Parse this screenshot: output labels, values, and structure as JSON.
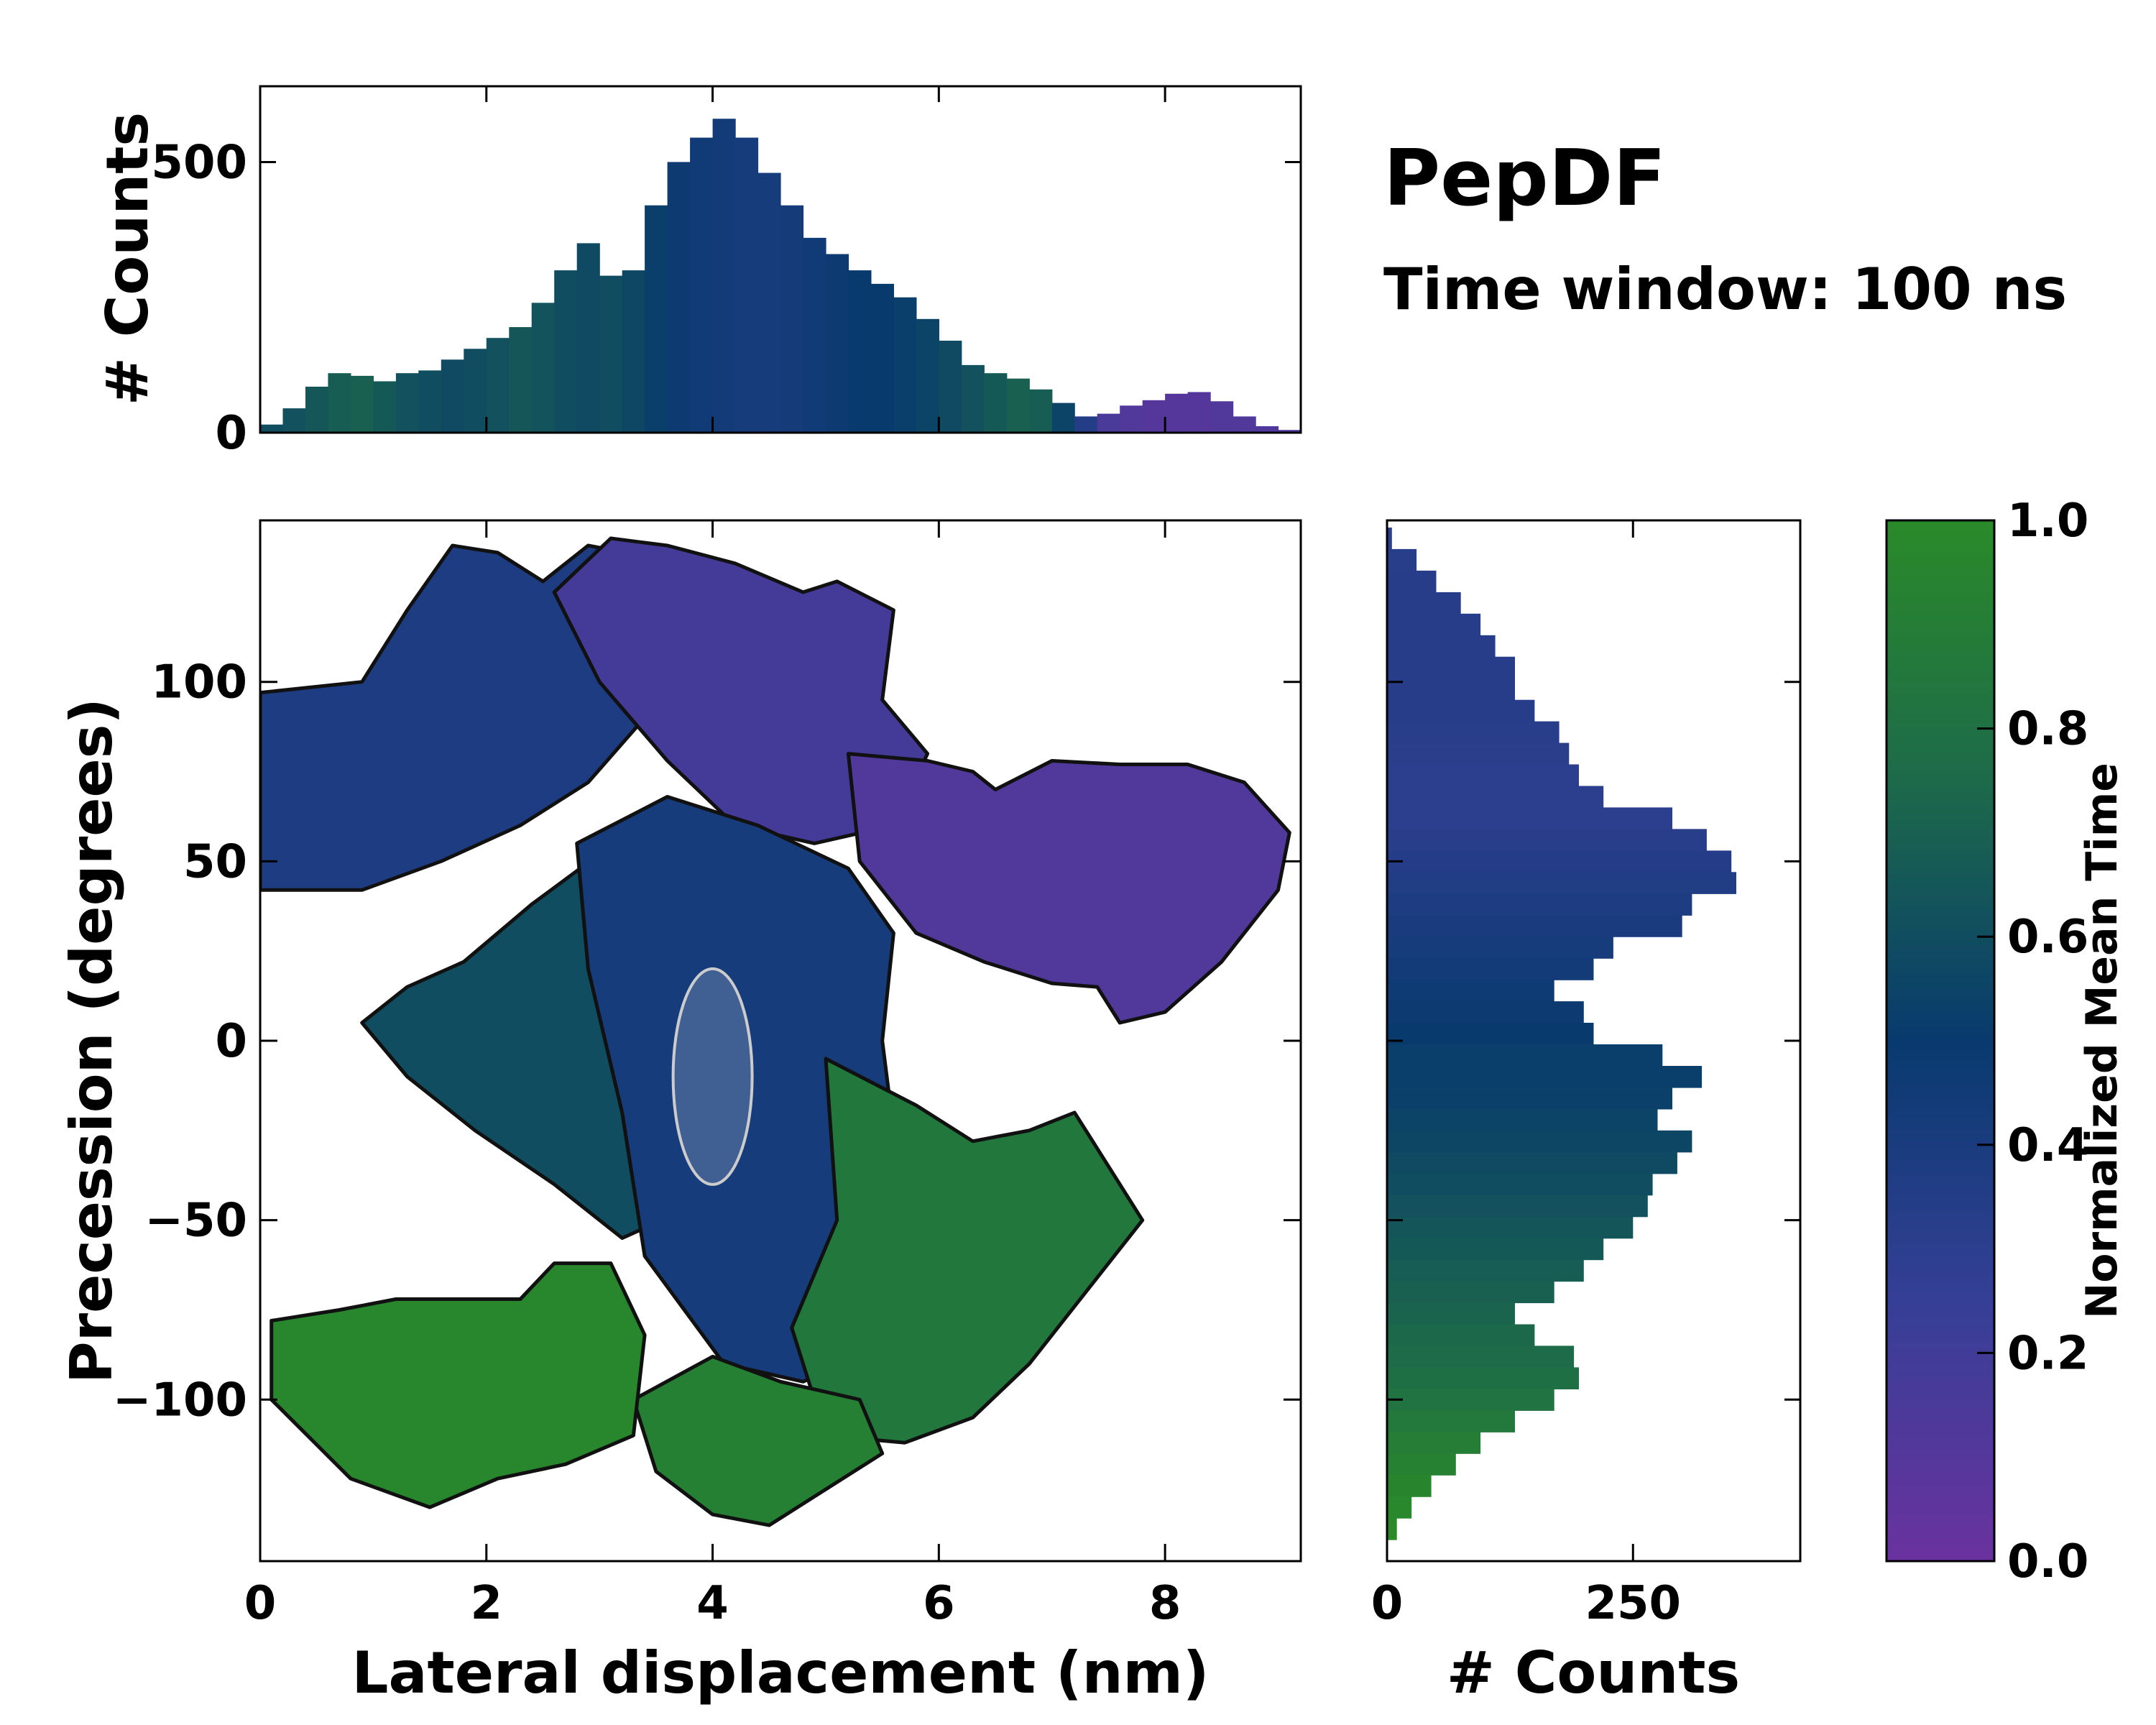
{
  "title": "PepDF",
  "subtitle": "Time window: 100 ns",
  "chart_data": [
    {
      "id": "top-histogram",
      "type": "bar",
      "ylabel": "# Counts",
      "xlim": [
        0,
        9.2
      ],
      "ylim": [
        0,
        640
      ],
      "yticks": [
        0,
        500
      ],
      "ytick_labels": [
        "0",
        "500"
      ],
      "bins": [
        {
          "x": 0.0,
          "count": 15,
          "t": 0.6
        },
        {
          "x": 0.2,
          "count": 45,
          "t": 0.62
        },
        {
          "x": 0.4,
          "count": 85,
          "t": 0.65
        },
        {
          "x": 0.6,
          "count": 110,
          "t": 0.68
        },
        {
          "x": 0.8,
          "count": 105,
          "t": 0.7
        },
        {
          "x": 1.0,
          "count": 95,
          "t": 0.66
        },
        {
          "x": 1.2,
          "count": 110,
          "t": 0.62
        },
        {
          "x": 1.4,
          "count": 115,
          "t": 0.6
        },
        {
          "x": 1.6,
          "count": 135,
          "t": 0.58
        },
        {
          "x": 1.8,
          "count": 155,
          "t": 0.6
        },
        {
          "x": 2.0,
          "count": 175,
          "t": 0.62
        },
        {
          "x": 2.2,
          "count": 195,
          "t": 0.65
        },
        {
          "x": 2.4,
          "count": 240,
          "t": 0.63
        },
        {
          "x": 2.6,
          "count": 300,
          "t": 0.6
        },
        {
          "x": 2.8,
          "count": 350,
          "t": 0.58
        },
        {
          "x": 3.0,
          "count": 290,
          "t": 0.6
        },
        {
          "x": 3.2,
          "count": 300,
          "t": 0.57
        },
        {
          "x": 3.4,
          "count": 420,
          "t": 0.52
        },
        {
          "x": 3.6,
          "count": 500,
          "t": 0.48
        },
        {
          "x": 3.8,
          "count": 545,
          "t": 0.45
        },
        {
          "x": 4.0,
          "count": 580,
          "t": 0.44
        },
        {
          "x": 4.2,
          "count": 545,
          "t": 0.42
        },
        {
          "x": 4.4,
          "count": 480,
          "t": 0.42
        },
        {
          "x": 4.6,
          "count": 420,
          "t": 0.43
        },
        {
          "x": 4.8,
          "count": 360,
          "t": 0.45
        },
        {
          "x": 5.0,
          "count": 330,
          "t": 0.48
        },
        {
          "x": 5.2,
          "count": 300,
          "t": 0.5
        },
        {
          "x": 5.4,
          "count": 275,
          "t": 0.5
        },
        {
          "x": 5.6,
          "count": 250,
          "t": 0.52
        },
        {
          "x": 5.8,
          "count": 210,
          "t": 0.55
        },
        {
          "x": 6.0,
          "count": 170,
          "t": 0.58
        },
        {
          "x": 6.2,
          "count": 125,
          "t": 0.62
        },
        {
          "x": 6.4,
          "count": 110,
          "t": 0.66
        },
        {
          "x": 6.6,
          "count": 100,
          "t": 0.7
        },
        {
          "x": 6.8,
          "count": 80,
          "t": 0.68
        },
        {
          "x": 7.0,
          "count": 55,
          "t": 0.55
        },
        {
          "x": 7.2,
          "count": 30,
          "t": 0.35
        },
        {
          "x": 7.4,
          "count": 35,
          "t": 0.15
        },
        {
          "x": 7.6,
          "count": 50,
          "t": 0.12
        },
        {
          "x": 7.8,
          "count": 60,
          "t": 0.1
        },
        {
          "x": 8.0,
          "count": 72,
          "t": 0.1
        },
        {
          "x": 8.2,
          "count": 75,
          "t": 0.1
        },
        {
          "x": 8.4,
          "count": 58,
          "t": 0.12
        },
        {
          "x": 8.6,
          "count": 30,
          "t": 0.12
        },
        {
          "x": 8.8,
          "count": 12,
          "t": 0.12
        },
        {
          "x": 9.0,
          "count": 5,
          "t": 0.12
        }
      ]
    },
    {
      "id": "main-density",
      "type": "heatmap",
      "xlabel": "Lateral displacement (nm)",
      "ylabel": "Precession (degrees)",
      "xlim": [
        0,
        9.2
      ],
      "ylim": [
        -145,
        145
      ],
      "xticks": [
        0,
        2,
        4,
        6,
        8
      ],
      "xtick_labels": [
        "0",
        "2",
        "4",
        "6",
        "8"
      ],
      "yticks": [
        -100,
        -50,
        0,
        50,
        100
      ],
      "ytick_labels": [
        "−100",
        "−50",
        "0",
        "50",
        "100"
      ],
      "regions": [
        {
          "name": "upper-left lobe",
          "t": 0.38,
          "points": [
            [
              0,
              97
            ],
            [
              0.9,
              100
            ],
            [
              1.3,
              120
            ],
            [
              1.7,
              138
            ],
            [
              2.1,
              136
            ],
            [
              2.5,
              128
            ],
            [
              2.9,
              138
            ],
            [
              3.4,
              135
            ],
            [
              4.0,
              125
            ],
            [
              4.1,
              105
            ],
            [
              3.4,
              90
            ],
            [
              2.9,
              72
            ],
            [
              2.3,
              60
            ],
            [
              1.6,
              50
            ],
            [
              0.9,
              42
            ],
            [
              0,
              42
            ]
          ]
        },
        {
          "name": "upper-central lobe",
          "t": 0.18,
          "points": [
            [
              2.6,
              125
            ],
            [
              3.1,
              140
            ],
            [
              3.6,
              138
            ],
            [
              4.2,
              133
            ],
            [
              4.8,
              125
            ],
            [
              5.1,
              128
            ],
            [
              5.6,
              120
            ],
            [
              5.5,
              95
            ],
            [
              5.9,
              80
            ],
            [
              5.6,
              60
            ],
            [
              4.9,
              55
            ],
            [
              4.2,
              60
            ],
            [
              3.6,
              78
            ],
            [
              3.0,
              100
            ]
          ]
        },
        {
          "name": "upper-right lobe",
          "t": 0.12,
          "points": [
            [
              5.2,
              80
            ],
            [
              5.9,
              78
            ],
            [
              6.3,
              75
            ],
            [
              6.5,
              70
            ],
            [
              7.0,
              78
            ],
            [
              7.6,
              77
            ],
            [
              8.2,
              77
            ],
            [
              8.7,
              72
            ],
            [
              9.1,
              58
            ],
            [
              9.0,
              42
            ],
            [
              8.5,
              22
            ],
            [
              8.0,
              8
            ],
            [
              7.6,
              5
            ],
            [
              7.4,
              15
            ],
            [
              7.0,
              16
            ],
            [
              6.4,
              22
            ],
            [
              5.8,
              30
            ],
            [
              5.3,
              50
            ]
          ]
        },
        {
          "name": "middle-left lobe",
          "t": 0.6,
          "points": [
            [
              0.9,
              5
            ],
            [
              1.3,
              15
            ],
            [
              1.8,
              22
            ],
            [
              2.4,
              38
            ],
            [
              3.0,
              52
            ],
            [
              3.6,
              55
            ],
            [
              4.3,
              45
            ],
            [
              4.6,
              25
            ],
            [
              4.5,
              0
            ],
            [
              4.3,
              -25
            ],
            [
              3.9,
              -45
            ],
            [
              3.2,
              -55
            ],
            [
              2.6,
              -40
            ],
            [
              1.9,
              -25
            ],
            [
              1.3,
              -10
            ]
          ]
        },
        {
          "name": "central band",
          "t": 0.42,
          "points": [
            [
              2.8,
              55
            ],
            [
              3.6,
              68
            ],
            [
              4.4,
              60
            ],
            [
              5.2,
              48
            ],
            [
              5.6,
              30
            ],
            [
              5.5,
              0
            ],
            [
              5.6,
              -25
            ],
            [
              5.8,
              -55
            ],
            [
              5.5,
              -85
            ],
            [
              4.8,
              -95
            ],
            [
              4.1,
              -90
            ],
            [
              3.4,
              -60
            ],
            [
              3.2,
              -20
            ],
            [
              2.9,
              20
            ]
          ]
        },
        {
          "name": "lower-right lobe",
          "t": 0.85,
          "points": [
            [
              5.0,
              -5
            ],
            [
              5.8,
              -18
            ],
            [
              6.3,
              -28
            ],
            [
              6.8,
              -25
            ],
            [
              7.2,
              -20
            ],
            [
              7.6,
              -40
            ],
            [
              7.8,
              -50
            ],
            [
              7.3,
              -70
            ],
            [
              6.8,
              -90
            ],
            [
              6.3,
              -105
            ],
            [
              5.7,
              -112
            ],
            [
              5.0,
              -110
            ],
            [
              4.7,
              -80
            ],
            [
              5.1,
              -50
            ]
          ]
        },
        {
          "name": "lower-central lobe",
          "t": 0.92,
          "points": [
            [
              4.0,
              -88
            ],
            [
              4.6,
              -95
            ],
            [
              5.3,
              -100
            ],
            [
              5.5,
              -115
            ],
            [
              5.0,
              -125
            ],
            [
              4.5,
              -135
            ],
            [
              4.0,
              -132
            ],
            [
              3.5,
              -120
            ],
            [
              3.3,
              -100
            ]
          ]
        },
        {
          "name": "lower-left lobe",
          "t": 0.97,
          "points": [
            [
              0.1,
              -78
            ],
            [
              0.7,
              -75
            ],
            [
              1.2,
              -72
            ],
            [
              1.7,
              -72
            ],
            [
              2.3,
              -72
            ],
            [
              2.6,
              -62
            ],
            [
              3.1,
              -62
            ],
            [
              3.4,
              -82
            ],
            [
              3.3,
              -110
            ],
            [
              2.7,
              -118
            ],
            [
              2.1,
              -122
            ],
            [
              1.5,
              -130
            ],
            [
              0.8,
              -122
            ],
            [
              0.1,
              -100
            ]
          ]
        }
      ]
    },
    {
      "id": "right-histogram",
      "type": "bar",
      "orientation": "horizontal",
      "xlabel": "# Counts",
      "xlim": [
        0,
        420
      ],
      "ylim": [
        -145,
        145
      ],
      "xticks": [
        0,
        250
      ],
      "xtick_labels": [
        "0",
        "250"
      ],
      "bins": [
        {
          "y": 140,
          "count": 5,
          "t": 0.3
        },
        {
          "y": 134,
          "count": 30,
          "t": 0.32
        },
        {
          "y": 128,
          "count": 50,
          "t": 0.33
        },
        {
          "y": 122,
          "count": 75,
          "t": 0.33
        },
        {
          "y": 116,
          "count": 95,
          "t": 0.33
        },
        {
          "y": 110,
          "count": 110,
          "t": 0.33
        },
        {
          "y": 104,
          "count": 130,
          "t": 0.33
        },
        {
          "y": 98,
          "count": 130,
          "t": 0.33
        },
        {
          "y": 92,
          "count": 150,
          "t": 0.33
        },
        {
          "y": 86,
          "count": 175,
          "t": 0.32
        },
        {
          "y": 80,
          "count": 185,
          "t": 0.31
        },
        {
          "y": 74,
          "count": 195,
          "t": 0.3
        },
        {
          "y": 68,
          "count": 220,
          "t": 0.3
        },
        {
          "y": 62,
          "count": 290,
          "t": 0.3
        },
        {
          "y": 56,
          "count": 325,
          "t": 0.32
        },
        {
          "y": 50,
          "count": 350,
          "t": 0.34
        },
        {
          "y": 44,
          "count": 355,
          "t": 0.36
        },
        {
          "y": 38,
          "count": 310,
          "t": 0.38
        },
        {
          "y": 32,
          "count": 300,
          "t": 0.4
        },
        {
          "y": 26,
          "count": 230,
          "t": 0.42
        },
        {
          "y": 20,
          "count": 210,
          "t": 0.44
        },
        {
          "y": 14,
          "count": 170,
          "t": 0.46
        },
        {
          "y": 8,
          "count": 200,
          "t": 0.48
        },
        {
          "y": 2,
          "count": 210,
          "t": 0.5
        },
        {
          "y": -4,
          "count": 280,
          "t": 0.52
        },
        {
          "y": -10,
          "count": 320,
          "t": 0.52
        },
        {
          "y": -16,
          "count": 290,
          "t": 0.53
        },
        {
          "y": -22,
          "count": 275,
          "t": 0.55
        },
        {
          "y": -28,
          "count": 310,
          "t": 0.56
        },
        {
          "y": -34,
          "count": 295,
          "t": 0.58
        },
        {
          "y": -40,
          "count": 270,
          "t": 0.6
        },
        {
          "y": -46,
          "count": 265,
          "t": 0.62
        },
        {
          "y": -52,
          "count": 250,
          "t": 0.64
        },
        {
          "y": -58,
          "count": 220,
          "t": 0.66
        },
        {
          "y": -64,
          "count": 200,
          "t": 0.68
        },
        {
          "y": -70,
          "count": 170,
          "t": 0.7
        },
        {
          "y": -76,
          "count": 130,
          "t": 0.72
        },
        {
          "y": -82,
          "count": 150,
          "t": 0.74
        },
        {
          "y": -88,
          "count": 190,
          "t": 0.76
        },
        {
          "y": -94,
          "count": 195,
          "t": 0.79
        },
        {
          "y": -100,
          "count": 170,
          "t": 0.82
        },
        {
          "y": -106,
          "count": 130,
          "t": 0.86
        },
        {
          "y": -112,
          "count": 95,
          "t": 0.9
        },
        {
          "y": -118,
          "count": 70,
          "t": 0.93
        },
        {
          "y": -124,
          "count": 45,
          "t": 0.96
        },
        {
          "y": -130,
          "count": 25,
          "t": 0.98
        },
        {
          "y": -136,
          "count": 10,
          "t": 1.0
        }
      ]
    },
    {
      "id": "colorbar",
      "type": "colorbar",
      "label": "Normalized Mean Time",
      "range": [
        0,
        1
      ],
      "ticks": [
        0,
        0.2,
        0.4,
        0.6,
        0.8,
        1.0
      ],
      "tick_labels": [
        "0.0",
        "0.2",
        "0.4",
        "0.6",
        "0.8",
        "1.0"
      ],
      "stops": [
        {
          "t": 0.0,
          "color": "#6a329f"
        },
        {
          "t": 0.25,
          "color": "#353f96"
        },
        {
          "t": 0.5,
          "color": "#083a6e"
        },
        {
          "t": 0.75,
          "color": "#1d6a4a"
        },
        {
          "t": 1.0,
          "color": "#2a8a29"
        }
      ]
    }
  ]
}
